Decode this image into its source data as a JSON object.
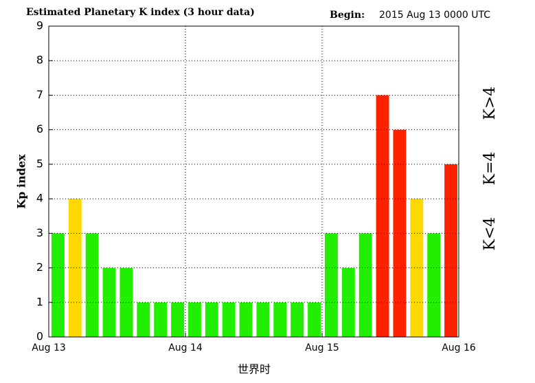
{
  "chart_data": {
    "type": "bar",
    "title": "Estimated Planetary K index (3 hour data)",
    "subtitle_label": "Begin:",
    "subtitle": "2015 Aug 13 0000 UTC",
    "y_label": "Kp index",
    "x_label": "世界时",
    "x": [
      0,
      0.125,
      0.25,
      0.375,
      0.5,
      0.625,
      0.75,
      0.875,
      1,
      1.125,
      1.25,
      1.375,
      1.5,
      1.625,
      1.75,
      1.875,
      2,
      2.125,
      2.25,
      2.375,
      2.5,
      2.625,
      2.75,
      2.875
    ],
    "values": [
      3,
      4,
      3,
      2,
      2,
      1,
      1,
      1,
      1,
      1,
      1,
      1,
      1,
      1,
      1,
      1,
      3,
      2,
      3,
      7,
      6,
      4,
      3,
      5
    ],
    "colors": [
      "#22ee00",
      "#ffd800",
      "#22ee00",
      "#22ee00",
      "#22ee00",
      "#22ee00",
      "#22ee00",
      "#22ee00",
      "#22ee00",
      "#22ee00",
      "#22ee00",
      "#22ee00",
      "#22ee00",
      "#22ee00",
      "#22ee00",
      "#22ee00",
      "#22ee00",
      "#22ee00",
      "#22ee00",
      "#ff2200",
      "#ff2200",
      "#ffd800",
      "#22ee00",
      "#ff2200"
    ],
    "xlim": [
      0,
      3
    ],
    "xticks": [
      {
        "value": 0,
        "label": "Aug 13"
      },
      {
        "value": 1,
        "label": "Aug 14"
      },
      {
        "value": 2,
        "label": "Aug 15"
      },
      {
        "value": 3,
        "label": "Aug 16"
      }
    ],
    "ylim": [
      0,
      9
    ],
    "yticks": [
      0,
      1,
      2,
      3,
      4,
      5,
      6,
      7,
      8,
      9
    ],
    "grid": true,
    "legend": [
      {
        "label": "K<4",
        "color": "#22ee00"
      },
      {
        "label": "K=4",
        "color": "#ffd800"
      },
      {
        "label": "K>4",
        "color": "#ff2200"
      }
    ]
  }
}
